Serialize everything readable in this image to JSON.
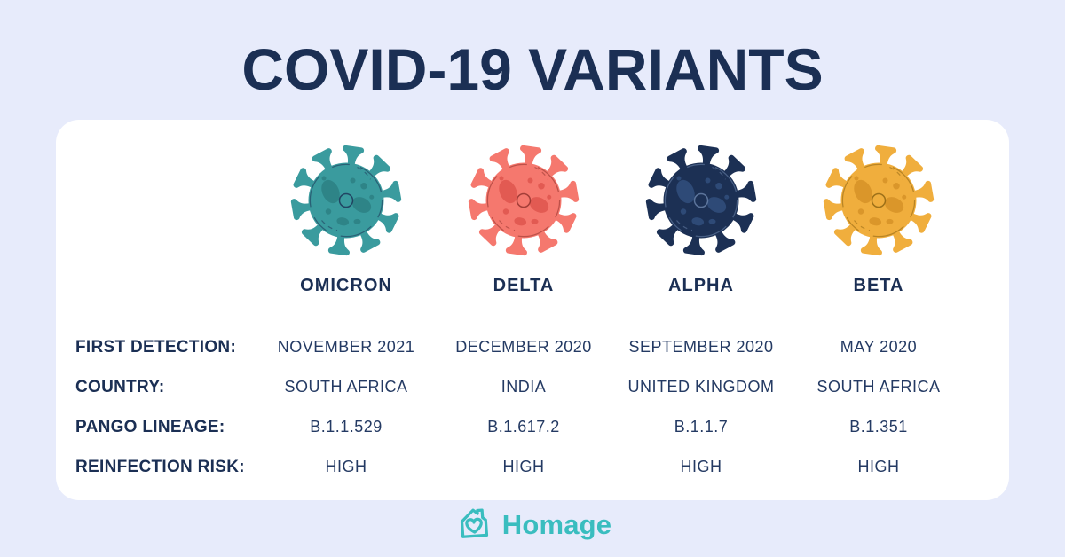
{
  "page": {
    "title": "COVID-19 VARIANTS",
    "background_color": "#e7ebfb",
    "card_color": "#ffffff",
    "text_color": "#1b2f54"
  },
  "table": {
    "row_labels": [
      "FIRST DETECTION:",
      "COUNTRY:",
      "PANGO LINEAGE:",
      "REINFECTION RISK:"
    ]
  },
  "variants": [
    {
      "name": "OMICRON",
      "first_detection": "NOVEMBER 2021",
      "country": "SOUTH AFRICA",
      "pango_lineage": "B.1.1.529",
      "reinfection_risk": "HIGH",
      "icon": "virus-icon",
      "colors": {
        "body": "#3a9b9e",
        "blob": "#2e8487",
        "line": "#1b2f54"
      }
    },
    {
      "name": "DELTA",
      "first_detection": "DECEMBER 2020",
      "country": "INDIA",
      "pango_lineage": "B.1.617.2",
      "reinfection_risk": "HIGH",
      "icon": "virus-icon",
      "colors": {
        "body": "#f5786e",
        "blob": "#e25a52",
        "line": "#8e2f2a"
      }
    },
    {
      "name": "ALPHA",
      "first_detection": "SEPTEMBER 2020",
      "country": "UNITED KINGDOM",
      "pango_lineage": "B.1.1.7",
      "reinfection_risk": "HIGH",
      "icon": "virus-icon",
      "colors": {
        "body": "#1c3054",
        "blob": "#2e4a77",
        "line": "#6d86ad"
      }
    },
    {
      "name": "BETA",
      "first_detection": "MAY 2020",
      "country": "SOUTH AFRICA",
      "pango_lineage": "B.1.351",
      "reinfection_risk": "HIGH",
      "icon": "virus-icon",
      "colors": {
        "body": "#f0ae3d",
        "blob": "#da962a",
        "line": "#8a6210"
      }
    }
  ],
  "footer": {
    "brand": "Homage",
    "brand_color": "#3abdbf",
    "logo_icon": "house-heart-icon"
  }
}
